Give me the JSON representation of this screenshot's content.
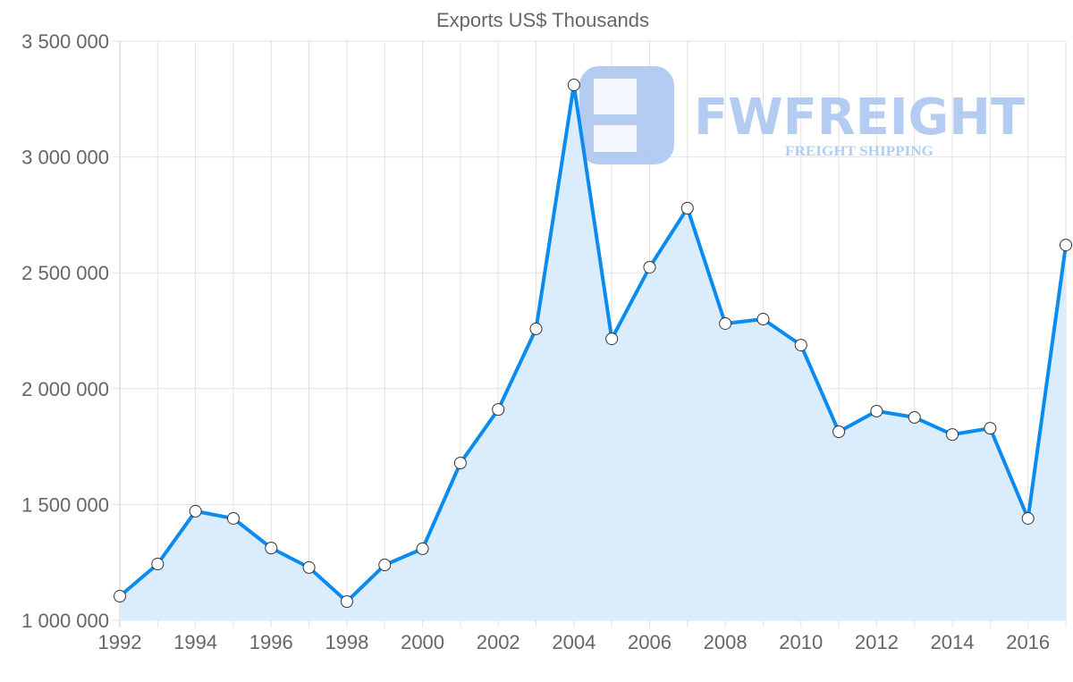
{
  "watermark": {
    "brand": "FWFREIGHT",
    "tagline": "FREIGHT SHIPPING"
  },
  "colors": {
    "line": "#0a8bf0",
    "fill": "#dbecfc",
    "grid": "#e2e2e2",
    "point_fill": "#ffffff",
    "point_stroke": "#333333"
  },
  "chart_data": {
    "type": "area",
    "title": "Exports US$ Thousands",
    "xlabel": "",
    "ylabel": "",
    "x": [
      1992,
      1993,
      1994,
      1995,
      1996,
      1997,
      1998,
      1999,
      2000,
      2001,
      2002,
      2003,
      2004,
      2005,
      2006,
      2007,
      2008,
      2009,
      2010,
      2011,
      2012,
      2013,
      2014,
      2015,
      2016,
      2017
    ],
    "series": [
      {
        "name": "Exports US$ Thousands",
        "values": [
          1104000,
          1243000,
          1471000,
          1440000,
          1312000,
          1228000,
          1081000,
          1239000,
          1309000,
          1679000,
          1910000,
          2258000,
          3311000,
          2215000,
          2524000,
          2779000,
          2281000,
          2300000,
          2188000,
          1814000,
          1903000,
          1876000,
          1802000,
          1829000,
          1440000,
          2620000
        ]
      }
    ],
    "ylim": [
      1000000,
      3500000
    ],
    "xlim": [
      1992,
      2017
    ],
    "yticks": [
      1000000,
      1500000,
      2000000,
      2500000,
      3000000,
      3500000
    ],
    "ytick_labels": [
      "1 000 000",
      "1 500 000",
      "2 000 000",
      "2 500 000",
      "3 000 000",
      "3 500 000"
    ],
    "xtick_labels": [
      "1992",
      "1994",
      "1996",
      "1998",
      "2000",
      "2002",
      "2004",
      "2006",
      "2008",
      "2010",
      "2012",
      "2014",
      "2016"
    ],
    "grid": true,
    "legend": "none"
  }
}
